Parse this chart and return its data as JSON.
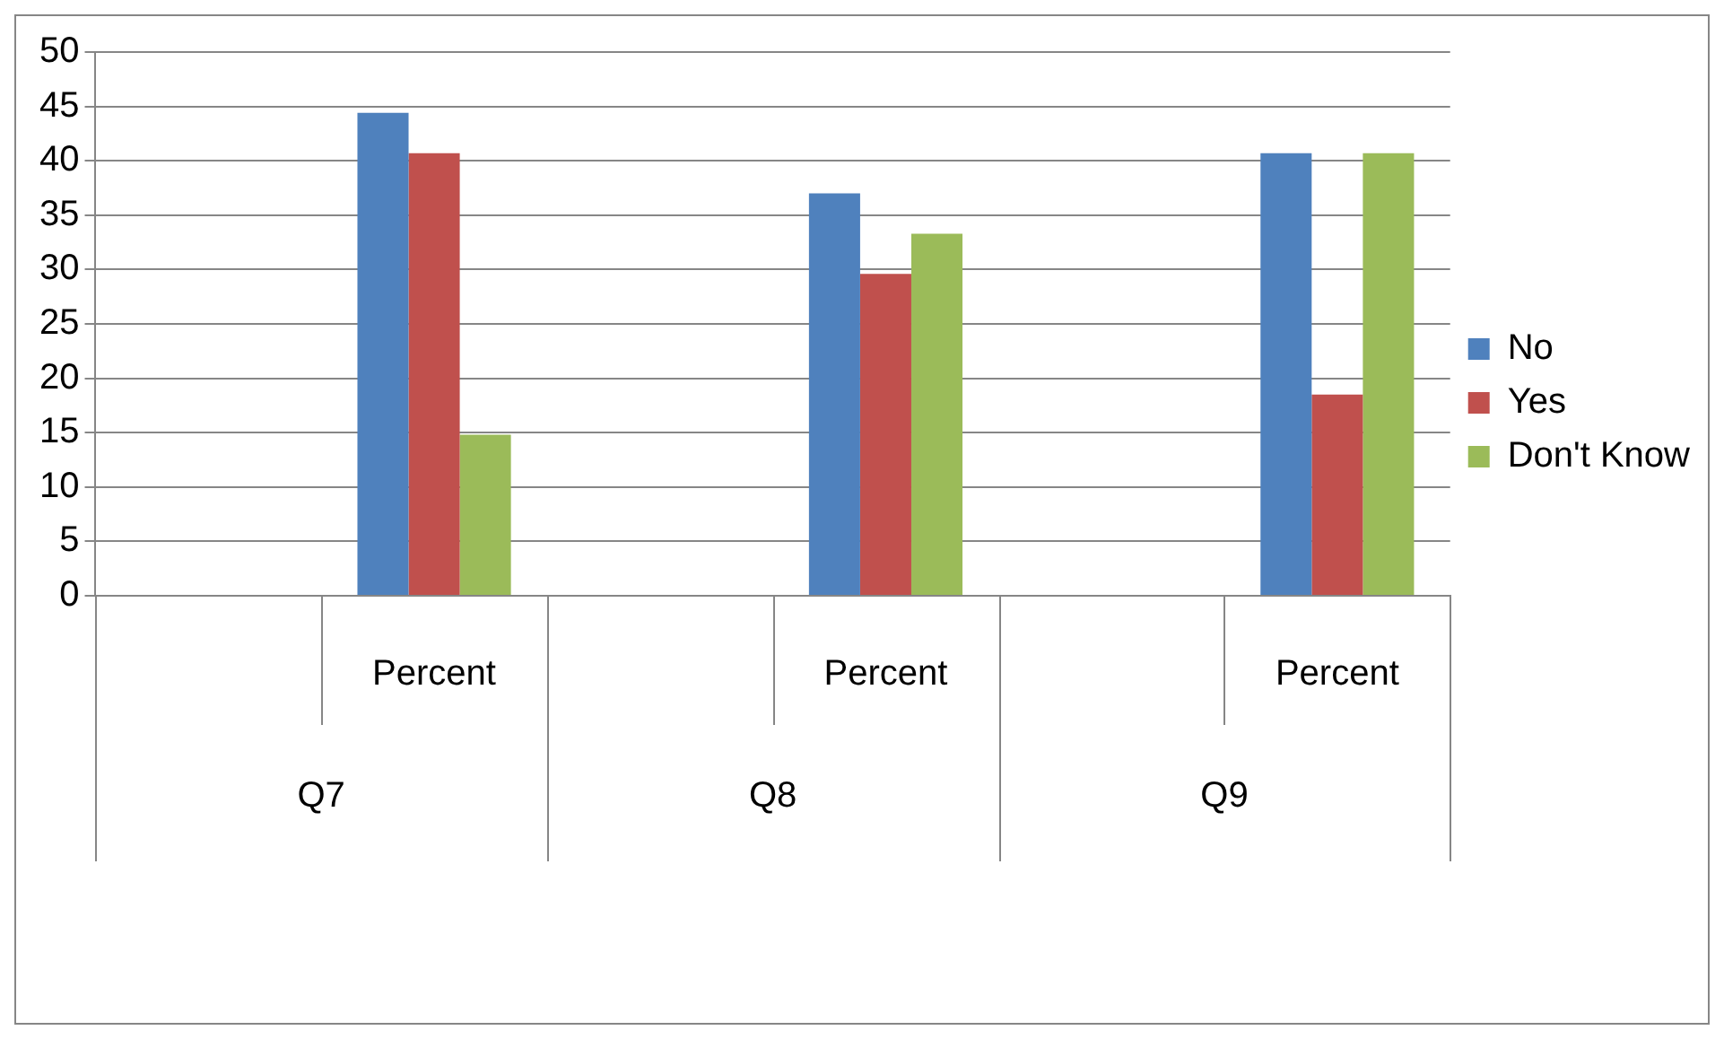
{
  "chart_data": {
    "type": "bar",
    "categories": [
      null,
      "Percent",
      null,
      "Percent",
      null,
      "Percent"
    ],
    "series": [
      {
        "name": "No",
        "color": "#4f81bd",
        "values": [
          null,
          44.4,
          null,
          37.0,
          null,
          40.7
        ]
      },
      {
        "name": "Yes",
        "color": "#c0504d",
        "values": [
          null,
          40.7,
          null,
          29.6,
          null,
          18.5
        ]
      },
      {
        "name": "Don't Know",
        "color": "#9bbb59",
        "values": [
          null,
          14.8,
          null,
          33.3,
          null,
          40.7
        ]
      }
    ],
    "annotations": [
      "Q7",
      "Q8",
      "Q9"
    ],
    "ylim": [
      0,
      50
    ],
    "yticks": [
      0,
      5,
      10,
      15,
      20,
      25,
      30,
      35,
      40,
      45,
      50
    ],
    "grid": "y",
    "legend": "right"
  }
}
